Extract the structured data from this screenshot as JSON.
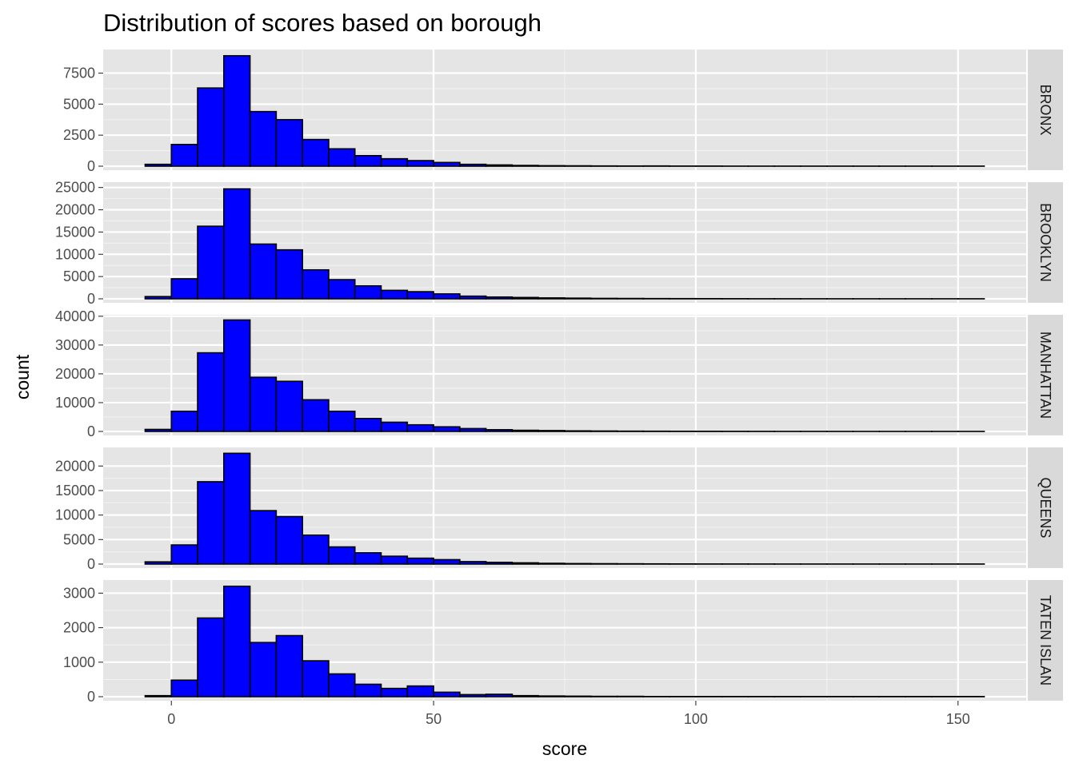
{
  "chart_data": {
    "type": "bar",
    "subtype": "faceted-histogram",
    "title": "Distribution of scores based on borough",
    "xlabel": "score",
    "ylabel": "count",
    "xlim": [
      -13,
      163
    ],
    "x_ticks": [
      0,
      50,
      100,
      150
    ],
    "bin_width": 5,
    "bin_starts": [
      -5,
      0,
      5,
      10,
      15,
      20,
      25,
      30,
      35,
      40,
      45,
      50,
      55,
      60,
      65,
      70,
      75,
      80,
      85,
      90,
      95,
      100,
      105,
      110,
      115,
      120,
      125,
      130,
      135,
      140,
      145,
      150
    ],
    "grid": true,
    "fill_color": "#0000ff",
    "edge_color": "#000000",
    "panel_background": "#e5e5e5",
    "strip_background": "#d9d9d9",
    "facets": [
      {
        "label": "BRONX",
        "ylim": [
          0,
          9400
        ],
        "y_ticks": [
          0,
          2500,
          5000,
          7500
        ],
        "values": [
          150,
          1750,
          6300,
          8900,
          4400,
          3750,
          2150,
          1400,
          850,
          600,
          450,
          300,
          150,
          100,
          60,
          40,
          30,
          20,
          15,
          20,
          10,
          10,
          5,
          5,
          5,
          5,
          5,
          5,
          5,
          5,
          5,
          5
        ]
      },
      {
        "label": "BROOKLYN",
        "ylim": [
          0,
          26200
        ],
        "y_ticks": [
          0,
          5000,
          10000,
          15000,
          20000,
          25000
        ],
        "values": [
          500,
          4500,
          16300,
          24700,
          12300,
          11000,
          6500,
          4300,
          2900,
          1900,
          1600,
          1100,
          600,
          400,
          300,
          200,
          150,
          100,
          80,
          60,
          50,
          40,
          30,
          20,
          20,
          15,
          10,
          10,
          10,
          10,
          10,
          10
        ]
      },
      {
        "label": "MANHATTAN",
        "ylim": [
          0,
          40500
        ],
        "y_ticks": [
          0,
          10000,
          20000,
          30000,
          40000
        ],
        "values": [
          700,
          7000,
          27300,
          38700,
          18800,
          17400,
          11000,
          7000,
          4500,
          3200,
          2300,
          1600,
          1000,
          600,
          400,
          300,
          200,
          150,
          100,
          80,
          60,
          50,
          40,
          30,
          20,
          20,
          15,
          10,
          10,
          10,
          10,
          10
        ]
      },
      {
        "label": "QUEENS",
        "ylim": [
          0,
          23800
        ],
        "y_ticks": [
          0,
          5000,
          10000,
          15000,
          20000
        ],
        "values": [
          450,
          3900,
          16800,
          22600,
          10900,
          9700,
          5900,
          3500,
          2300,
          1600,
          1200,
          900,
          500,
          350,
          250,
          150,
          100,
          80,
          60,
          40,
          30,
          20,
          20,
          15,
          10,
          10,
          10,
          10,
          10,
          10,
          10,
          10
        ]
      },
      {
        "label": "TATEN ISLAN",
        "ylim": [
          0,
          3380
        ],
        "y_ticks": [
          0,
          1000,
          2000,
          3000
        ],
        "values": [
          30,
          480,
          2280,
          3200,
          1570,
          1770,
          1040,
          660,
          360,
          240,
          310,
          130,
          60,
          70,
          30,
          20,
          15,
          10,
          10,
          5,
          5,
          5,
          5,
          5,
          5,
          5,
          5,
          5,
          5,
          5,
          5,
          5
        ]
      }
    ]
  }
}
